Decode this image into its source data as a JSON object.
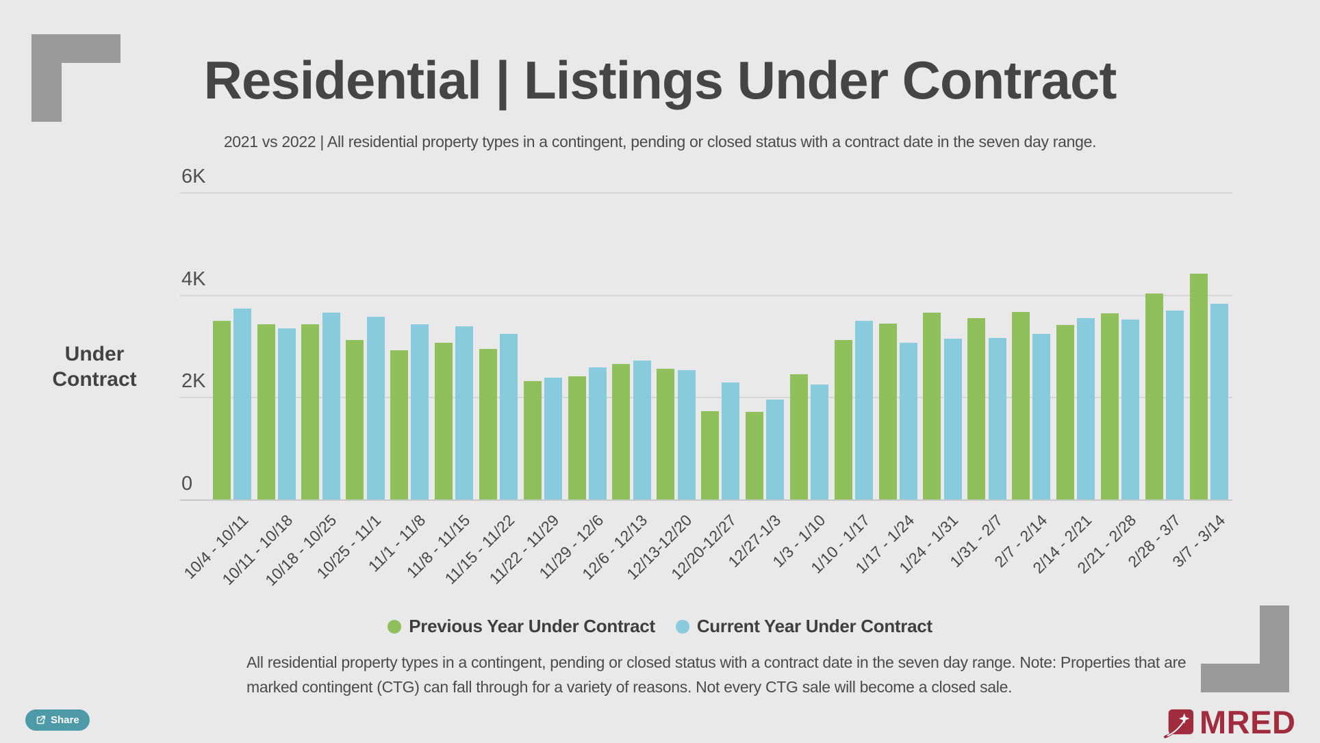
{
  "page": {
    "title": "Residential | Listings Under Contract",
    "subtitle": "2021 vs 2022 | All residential property types in a contingent, pending or closed status with a contract date in the seven day range."
  },
  "chart_data": {
    "type": "bar",
    "title": "Residential | Listings Under Contract",
    "xlabel": "",
    "ylabel": "Under Contract",
    "y_axis_label_lines": [
      "Under",
      "Contract"
    ],
    "ylim": [
      0,
      6000
    ],
    "yticks": [
      {
        "value": 0,
        "label": "0"
      },
      {
        "value": 2000,
        "label": "2K"
      },
      {
        "value": 4000,
        "label": "4K"
      },
      {
        "value": 6000,
        "label": "6K"
      }
    ],
    "grid": true,
    "legend_position": "bottom",
    "categories": [
      "10/4 - 10/11",
      "10/11 - 10/18",
      "10/18 - 10/25",
      "10/25 - 11/1",
      "11/1 - 11/8",
      "11/8 - 11/15",
      "11/15 - 11/22",
      "11/22 - 11/29",
      "11/29 - 12/6",
      "12/6 - 12/13",
      "12/13-12/20",
      "12/20-12/27",
      "12/27-1/3",
      "1/3 - 1/10",
      "1/10 - 1/17",
      "1/17 - 1/24",
      "1/24 - 1/31",
      "1/31 - 2/7",
      "2/7 - 2/14",
      "2/14 - 2/21",
      "2/21 - 2/28",
      "2/28 - 3/7",
      "3/7 - 3/14"
    ],
    "series": [
      {
        "name": "Previous Year Under Contract",
        "color": "#8fc05c",
        "values": [
          3490,
          3415,
          3415,
          3110,
          2920,
          3065,
          2935,
          2310,
          2410,
          2640,
          2550,
          1720,
          1705,
          2440,
          3120,
          3435,
          3645,
          3535,
          3655,
          3405,
          3640,
          4020,
          4410
        ]
      },
      {
        "name": "Current Year Under Contract",
        "color": "#87cbdd",
        "values": [
          3730,
          3335,
          3645,
          3570,
          3420,
          3375,
          3235,
          2385,
          2585,
          2710,
          2530,
          2280,
          1950,
          2250,
          3485,
          3065,
          3140,
          3160,
          3235,
          3545,
          3515,
          3690,
          3825
        ]
      }
    ]
  },
  "footer": {
    "note_lines": [
      "All residential property types in a contingent, pending or closed status with a contract date in the seven day range. Note: Properties that are",
      "marked contingent (CTG) can fall through for a variety of reasons. Not every CTG sale will become a closed sale."
    ]
  },
  "share": {
    "label": "Share"
  },
  "brand": {
    "logo_text": "MRED",
    "color": "#a12c3e"
  },
  "colors": {
    "background": "#e8e9e8",
    "corner_decoration": "#9a9a9a",
    "title_text": "#454545",
    "gridline": "#d6d7d7",
    "share_button": "#4e9aa9",
    "previous_year": "#8fc05c",
    "current_year": "#87cbdd"
  }
}
